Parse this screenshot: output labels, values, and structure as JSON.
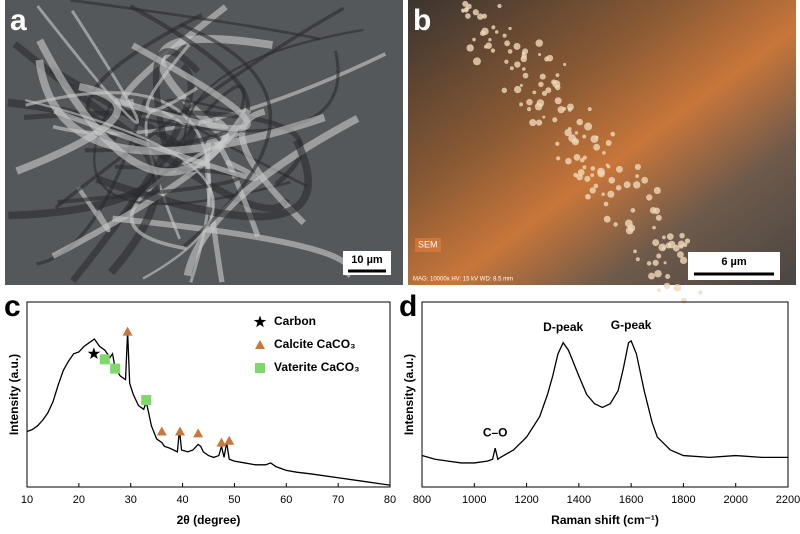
{
  "panels": {
    "a": {
      "label": "a",
      "scale_bar": "10 µm"
    },
    "b": {
      "label": "b",
      "scale_bar": "6 µm",
      "tag": "SEM",
      "info": "MAG: 10000x   HV: 15 kV   WD: 8.5 mm"
    }
  },
  "chart_data": [
    {
      "type": "line",
      "panel_label": "c",
      "xlabel": "2θ (degree)",
      "ylabel": "Intensity (a.u.)",
      "xlim": [
        10,
        80
      ],
      "xticks": [
        10,
        20,
        30,
        40,
        50,
        60,
        70,
        80
      ],
      "ylim": [
        0,
        100
      ],
      "legend": "upper right",
      "series": [
        {
          "color": "#000000",
          "x": [
            10,
            11,
            12,
            13,
            14,
            15,
            16,
            17,
            18,
            19,
            20,
            21,
            22,
            23,
            24,
            25,
            26,
            26.5,
            27,
            28,
            29,
            29.4,
            29.8,
            30.5,
            31.5,
            32.5,
            33,
            34,
            35,
            36,
            36.5,
            37.5,
            39,
            39.4,
            39.8,
            41,
            42,
            43,
            43.5,
            44,
            45,
            46,
            47,
            47.5,
            48,
            48.5,
            49,
            50,
            52,
            54,
            56,
            57,
            58,
            60,
            62,
            65,
            70,
            75,
            80
          ],
          "values": [
            30,
            31,
            33,
            36,
            40,
            46,
            55,
            63,
            68,
            72,
            73,
            76,
            78,
            80,
            76,
            74,
            70,
            72,
            64,
            60,
            58,
            84,
            56,
            50,
            44,
            42,
            46,
            33,
            26,
            24,
            22,
            21,
            19,
            31,
            20,
            19,
            20,
            23,
            22,
            19,
            17,
            16,
            17,
            22,
            16,
            24,
            15,
            14,
            13,
            12,
            12,
            13,
            11,
            9,
            8,
            7,
            5,
            3,
            1
          ]
        }
      ],
      "markers": [
        {
          "name": "Carbon",
          "shape": "star",
          "color": "#000000",
          "x": [
            22.9
          ],
          "values": [
            72
          ]
        },
        {
          "name": "Calcite CaCO₃",
          "shape": "triangle",
          "color": "#c8783c",
          "x": [
            29.4,
            36,
            39.5,
            43,
            47.5,
            49
          ],
          "values": [
            84,
            30,
            30,
            29,
            24,
            25
          ]
        },
        {
          "name": "Vaterite CaCO₃",
          "shape": "square",
          "color": "#7ed86a",
          "x": [
            25,
            27,
            33
          ],
          "values": [
            69,
            64,
            47
          ]
        }
      ]
    },
    {
      "type": "line",
      "panel_label": "d",
      "xlabel": "Raman shift (cm⁻¹)",
      "ylabel": "Intensity (a.u.)",
      "xlim": [
        800,
        2200
      ],
      "xticks": [
        800,
        1000,
        1200,
        1400,
        1600,
        1800,
        2000,
        2200
      ],
      "ylim": [
        0,
        100
      ],
      "series": [
        {
          "color": "#000000",
          "x": [
            800,
            850,
            900,
            950,
            1000,
            1050,
            1070,
            1080,
            1090,
            1100,
            1150,
            1200,
            1250,
            1280,
            1300,
            1320,
            1340,
            1360,
            1380,
            1400,
            1430,
            1460,
            1490,
            1520,
            1550,
            1570,
            1590,
            1600,
            1620,
            1650,
            1680,
            1700,
            1750,
            1800,
            1900,
            2000,
            2100,
            2200
          ],
          "values": [
            17,
            15,
            14,
            13,
            13,
            14,
            15,
            21,
            15,
            16,
            20,
            27,
            38,
            50,
            60,
            72,
            78,
            74,
            67,
            60,
            50,
            45,
            43,
            45,
            52,
            64,
            78,
            79,
            72,
            52,
            35,
            27,
            20,
            17,
            16,
            17,
            16,
            16
          ]
        }
      ],
      "annotations": [
        {
          "text": "C–O",
          "x": 1080
        },
        {
          "text": "D-peak",
          "x": 1340
        },
        {
          "text": "G-peak",
          "x": 1600
        }
      ]
    }
  ]
}
